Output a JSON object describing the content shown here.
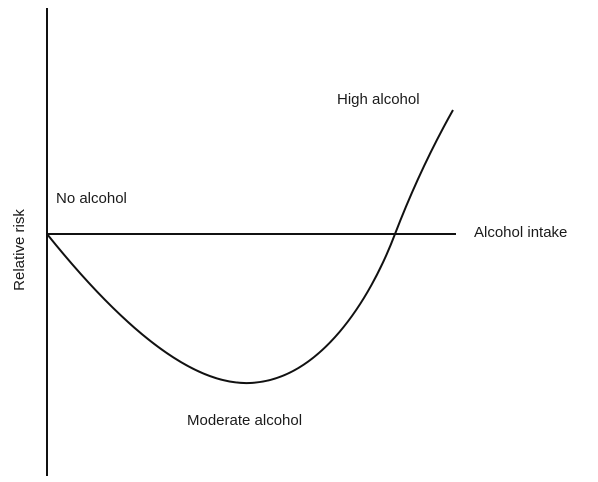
{
  "labels": {
    "high": "High alcohol",
    "none": "No alcohol",
    "x_axis": "Alcohol intake",
    "y_axis": "Relative risk",
    "moderate": "Moderate alcohol"
  }
}
